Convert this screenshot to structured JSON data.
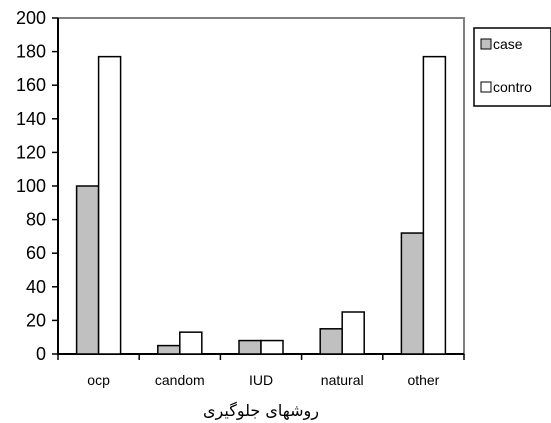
{
  "chart_data": {
    "type": "bar",
    "categories": [
      "ocp",
      "candom",
      "IUD",
      "natural",
      "other"
    ],
    "series": [
      {
        "name": "case",
        "values": [
          100,
          5,
          8,
          15,
          72
        ],
        "color": "#c0c0c0"
      },
      {
        "name": "contro",
        "values": [
          177,
          13,
          8,
          25,
          177
        ],
        "color": "#ffffff"
      }
    ],
    "y_ticks": [
      0,
      20,
      40,
      60,
      80,
      100,
      120,
      140,
      160,
      180,
      200
    ],
    "ylim": [
      0,
      200
    ],
    "xlabel": "روشهای جلوگیری",
    "ylabel": "",
    "title": "",
    "grid": false,
    "legend_position": "right"
  }
}
